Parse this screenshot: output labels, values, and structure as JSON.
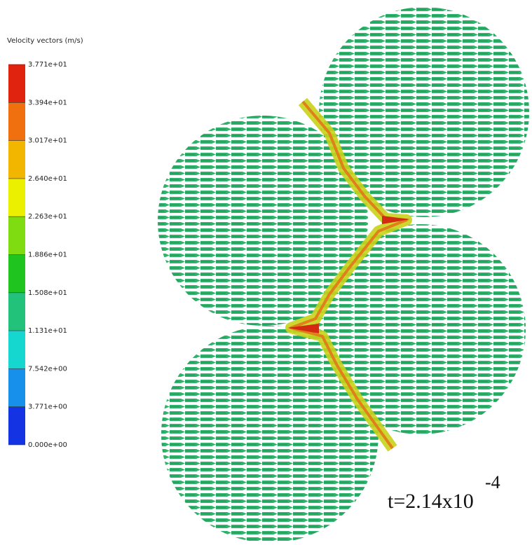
{
  "legend": {
    "title": "Velocity vectors (m/s)",
    "labels": [
      "3.771e+01",
      "3.394e+01",
      "3.017e+01",
      "2.640e+01",
      "2.263e+01",
      "1.886e+01",
      "1.508e+01",
      "1.131e+01",
      "7.542e+00",
      "3.771e+00",
      "0.000e+00"
    ]
  },
  "annotation": {
    "text": "t=2.14x10",
    "exponent": "-4"
  }
}
